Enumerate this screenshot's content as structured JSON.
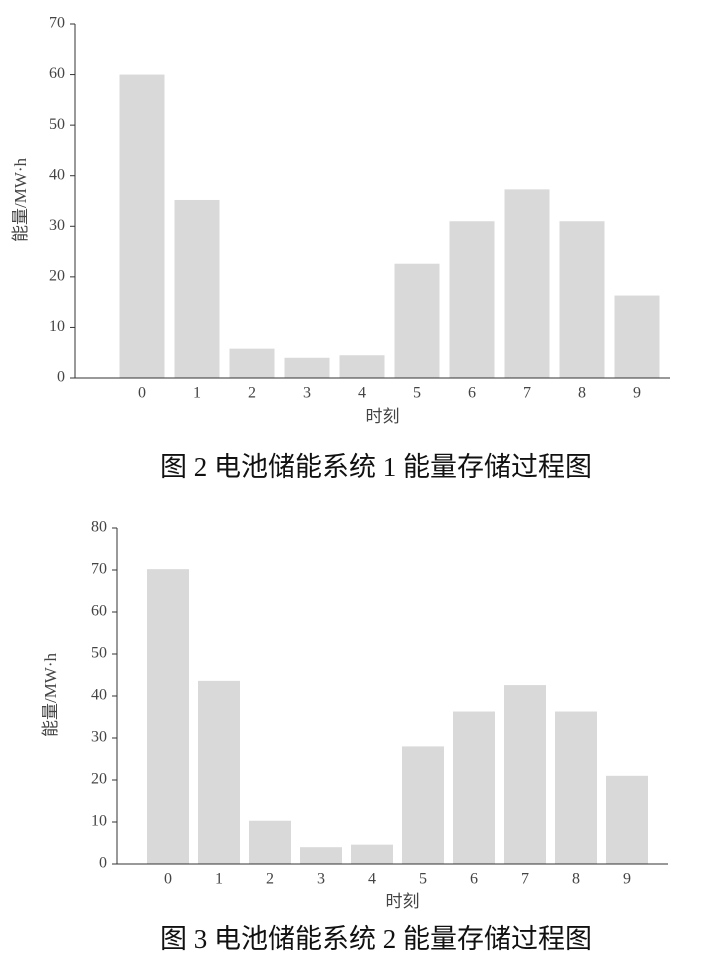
{
  "chart_data": [
    {
      "type": "bar",
      "title": "图 2 电池储能系统 1 能量存储过程图",
      "xlabel": "时刻",
      "ylabel": "能量/MW·h",
      "categories": [
        "0",
        "1",
        "2",
        "3",
        "4",
        "5",
        "6",
        "7",
        "8",
        "9"
      ],
      "values": [
        60,
        35.2,
        5.8,
        4,
        4.5,
        22.6,
        31,
        37.3,
        31,
        16.3
      ],
      "color": "#d9d9d9",
      "ylim": [
        0,
        70
      ],
      "yticks": [
        0,
        10,
        20,
        30,
        40,
        50,
        60,
        70
      ],
      "grid": false
    },
    {
      "type": "bar",
      "title": "图 3 电池储能系统 2 能量存储过程图",
      "xlabel": "时刻",
      "ylabel": "能量/MW·h",
      "categories": [
        "0",
        "1",
        "2",
        "3",
        "4",
        "5",
        "6",
        "7",
        "8",
        "9"
      ],
      "values": [
        70.2,
        43.6,
        10.3,
        4,
        4.6,
        28,
        36.3,
        42.6,
        36.3,
        21
      ],
      "color": "#d9d9d9",
      "ylim": [
        0,
        80
      ],
      "yticks": [
        0,
        10,
        20,
        30,
        40,
        50,
        60,
        70,
        80
      ],
      "grid": false
    }
  ]
}
